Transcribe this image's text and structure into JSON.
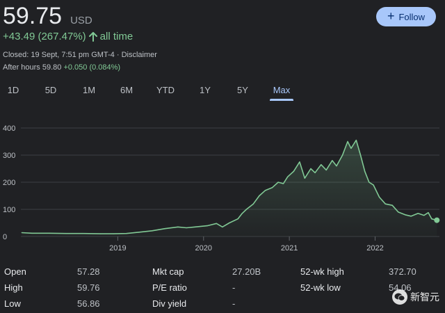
{
  "header": {
    "price": "59.75",
    "currency": "USD",
    "change_text": "+43.49 (267.47%)",
    "change_period": "all time",
    "closed_text": "Closed: 19 Sept, 7:51 pm GMT-4 · Disclaimer",
    "after_hours_label": "After hours 59.80",
    "after_hours_change": "+0.050 (0.084%)",
    "follow_label": "Follow"
  },
  "tabs": [
    {
      "label": "1D",
      "active": false
    },
    {
      "label": "5D",
      "active": false
    },
    {
      "label": "1M",
      "active": false
    },
    {
      "label": "6M",
      "active": false
    },
    {
      "label": "YTD",
      "active": false
    },
    {
      "label": "1Y",
      "active": false
    },
    {
      "label": "5Y",
      "active": false
    },
    {
      "label": "Max",
      "active": true
    }
  ],
  "chart_data": {
    "type": "area",
    "y_ticks": [
      0,
      100,
      200,
      300,
      400
    ],
    "ylim": [
      0,
      400
    ],
    "x_tick_labels": [
      "2019",
      "2020",
      "2021",
      "2022"
    ],
    "x_ticks": [
      2019,
      2020,
      2021,
      2022
    ],
    "xlim": [
      2017.87,
      2022.75
    ],
    "line_color": "#81c995",
    "grid": true,
    "points": [
      [
        2017.88,
        14
      ],
      [
        2018.0,
        12
      ],
      [
        2018.2,
        12
      ],
      [
        2018.4,
        11
      ],
      [
        2018.6,
        11
      ],
      [
        2018.8,
        10
      ],
      [
        2018.95,
        10
      ],
      [
        2019.1,
        11
      ],
      [
        2019.25,
        16
      ],
      [
        2019.4,
        21
      ],
      [
        2019.55,
        29
      ],
      [
        2019.7,
        35
      ],
      [
        2019.8,
        32
      ],
      [
        2019.9,
        35
      ],
      [
        2020.05,
        40
      ],
      [
        2020.15,
        48
      ],
      [
        2020.22,
        35
      ],
      [
        2020.3,
        50
      ],
      [
        2020.4,
        65
      ],
      [
        2020.45,
        85
      ],
      [
        2020.5,
        100
      ],
      [
        2020.58,
        120
      ],
      [
        2020.65,
        150
      ],
      [
        2020.72,
        170
      ],
      [
        2020.8,
        180
      ],
      [
        2020.87,
        200
      ],
      [
        2020.93,
        195
      ],
      [
        2020.98,
        220
      ],
      [
        2021.05,
        240
      ],
      [
        2021.12,
        275
      ],
      [
        2021.18,
        215
      ],
      [
        2021.25,
        250
      ],
      [
        2021.3,
        235
      ],
      [
        2021.37,
        265
      ],
      [
        2021.43,
        245
      ],
      [
        2021.5,
        280
      ],
      [
        2021.55,
        260
      ],
      [
        2021.62,
        300
      ],
      [
        2021.68,
        350
      ],
      [
        2021.72,
        325
      ],
      [
        2021.78,
        355
      ],
      [
        2021.83,
        300
      ],
      [
        2021.88,
        240
      ],
      [
        2021.93,
        200
      ],
      [
        2021.98,
        190
      ],
      [
        2022.05,
        145
      ],
      [
        2022.12,
        120
      ],
      [
        2022.2,
        115
      ],
      [
        2022.27,
        90
      ],
      [
        2022.35,
        80
      ],
      [
        2022.42,
        75
      ],
      [
        2022.5,
        85
      ],
      [
        2022.57,
        78
      ],
      [
        2022.62,
        88
      ],
      [
        2022.66,
        65
      ],
      [
        2022.72,
        60
      ]
    ]
  },
  "stats": {
    "col1": [
      {
        "label": "Open",
        "value": "57.28"
      },
      {
        "label": "High",
        "value": "59.76"
      },
      {
        "label": "Low",
        "value": "56.86"
      }
    ],
    "col2": [
      {
        "label": "Mkt cap",
        "value": "27.20B"
      },
      {
        "label": "P/E ratio",
        "value": "-"
      },
      {
        "label": "Div yield",
        "value": "-"
      }
    ],
    "col3": [
      {
        "label": "52-wk high",
        "value": "372.70"
      },
      {
        "label": "52-wk low",
        "value": "54.06"
      }
    ]
  },
  "watermark": {
    "text": "新智元",
    "icon": "wechat-icon"
  }
}
